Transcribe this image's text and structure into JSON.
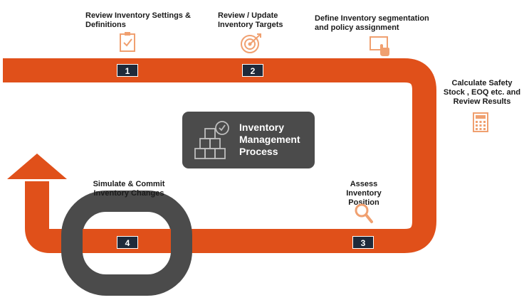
{
  "colors": {
    "track": "#e0501a",
    "icon": "#f0a070",
    "dark": "#4b4b4b",
    "badge": "#1f2a3a"
  },
  "center": {
    "title": "Inventory Management Process",
    "icon": "boxes-check-icon"
  },
  "labels": {
    "review_settings": "Review Inventory Settings & Definitions",
    "update_targets": "Review / Update Inventory Targets",
    "define_segmentation": "Define Inventory segmentation and policy assignment",
    "calc_safety_stock": "Calculate Safety Stock , EOQ etc. and Review Results",
    "assess_position": "Assess Inventory Position",
    "simulate_commit": "Simulate & Commit Inventory Changes"
  },
  "steps": [
    "1",
    "2",
    "3",
    "4"
  ],
  "icons": {
    "review_settings": "clipboard-check-icon",
    "update_targets": "target-icon",
    "define_segmentation": "touch-screen-icon",
    "calc_safety_stock": "calculator-icon",
    "assess_position": "magnifier-icon"
  }
}
